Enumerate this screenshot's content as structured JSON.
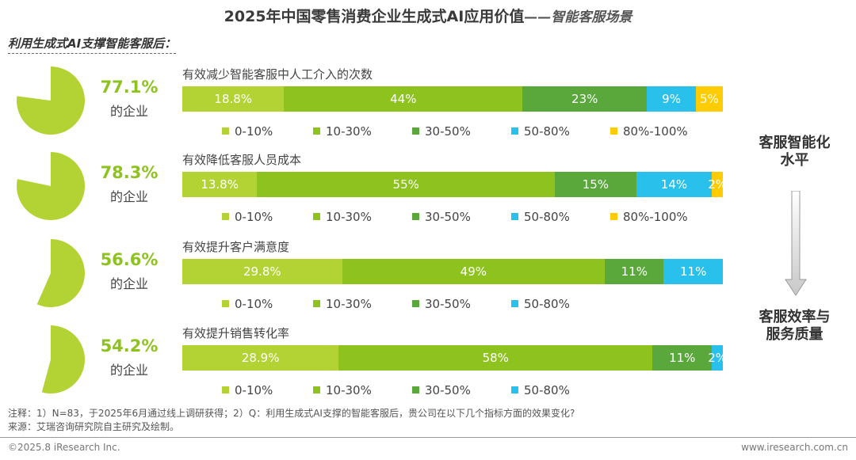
{
  "title": {
    "main": "2025年中国零售消费企业生成式AI应用价值",
    "suffix": "——智能客服场景"
  },
  "subtitle": "利用生成式AI支撑智能客服后：",
  "colors": {
    "c0_10": "#b3d335",
    "c10_30": "#8dc21f",
    "c30_50": "#5aa73c",
    "c50_80": "#29c0eb",
    "c80_100": "#ffcc00",
    "accent": "#8dc21f"
  },
  "legend_labels": [
    "0-10%",
    "10-30%",
    "30-50%",
    "50-80%",
    "80%-100%"
  ],
  "side": {
    "top": "客服智能化\n水平",
    "bottom": "客服效率与\n服务质量"
  },
  "chart_data": {
    "type": "bar",
    "stacked": true,
    "orientation": "horizontal",
    "categories": [
      "0-10%",
      "10-30%",
      "30-50%",
      "50-80%",
      "80%-100%"
    ],
    "rows": [
      {
        "question": "有效减少智能客服中人工介入的次数",
        "share": 77.1,
        "share_text": "77.1%",
        "share_label": "的企业",
        "values": [
          18.8,
          44,
          23,
          9,
          5
        ],
        "labels": [
          "18.8%",
          "44%",
          "23%",
          "9%",
          "5%"
        ]
      },
      {
        "question": "有效降低客服人员成本",
        "share": 78.3,
        "share_text": "78.3%",
        "share_label": "的企业",
        "values": [
          13.8,
          55,
          15,
          14,
          2
        ],
        "labels": [
          "13.8%",
          "55%",
          "15%",
          "14%",
          "2%"
        ]
      },
      {
        "question": "有效提升客户满意度",
        "share": 56.6,
        "share_text": "56.6%",
        "share_label": "的企业",
        "values": [
          29.8,
          49,
          11,
          11
        ],
        "labels": [
          "29.8%",
          "49%",
          "11%",
          "11%"
        ]
      },
      {
        "question": "有效提升销售转化率",
        "share": 54.2,
        "share_text": "54.2%",
        "share_label": "的企业",
        "values": [
          28.9,
          58,
          11,
          2
        ],
        "labels": [
          "28.9%",
          "58%",
          "11%",
          "2%"
        ]
      }
    ]
  },
  "notes": [
    "注释：1）N=83，于2025年6月通过线上调研获得；2）Q：利用生成式AI支撑的智能客服后，贵公司在以下几个指标方面的效果变化?",
    "来源：艾瑞咨询研究院自主研究及绘制。"
  ],
  "footer": {
    "copyright": "©2025.8 iResearch Inc.",
    "website": "www.iresearch.com.cn"
  }
}
